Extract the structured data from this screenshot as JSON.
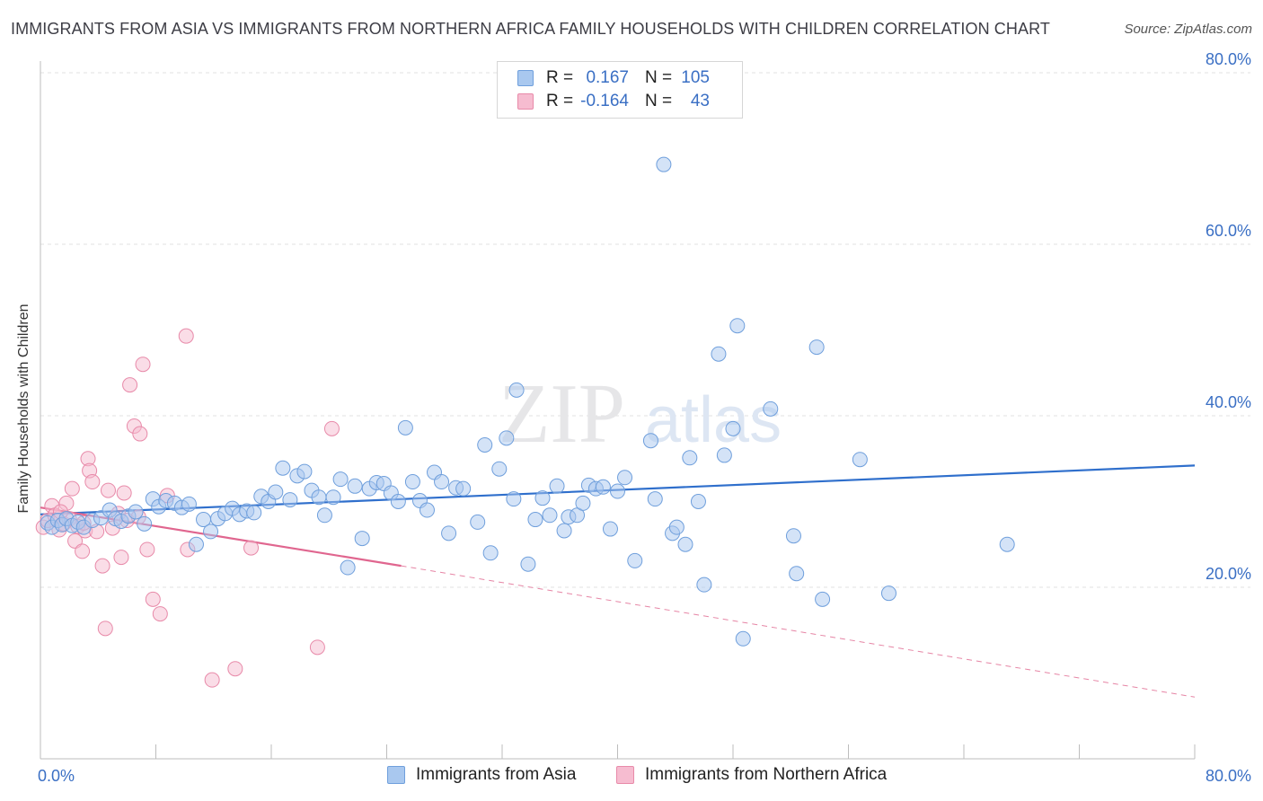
{
  "header": {
    "title": "IMMIGRANTS FROM ASIA VS IMMIGRANTS FROM NORTHERN AFRICA FAMILY HOUSEHOLDS WITH CHILDREN CORRELATION CHART",
    "source": "Source: ZipAtlas.com"
  },
  "watermark": {
    "zip": "ZIP",
    "atlas": "atlas"
  },
  "legend": {
    "rows": [
      {
        "r_label": "R =",
        "r_value": "0.167",
        "n_label": "N =",
        "n_value": "105"
      },
      {
        "r_label": "R =",
        "r_value": "-0.164",
        "n_label": "N =",
        "n_value": "43"
      }
    ]
  },
  "colors": {
    "asia_fill": "#a9c8ef",
    "asia_stroke": "#6f9fdc",
    "asia_line": "#2f6fcc",
    "africa_fill": "#f6bcd0",
    "africa_stroke": "#e88aa9",
    "africa_line": "#e0668f",
    "tick_text": "#3a6fc4",
    "grid": "#e2e2e2"
  },
  "chart_data": {
    "type": "scatter",
    "title": "IMMIGRANTS FROM ASIA VS IMMIGRANTS FROM NORTHERN AFRICA FAMILY HOUSEHOLDS WITH CHILDREN CORRELATION CHART",
    "xlabel": "",
    "ylabel": "Family Households with Children",
    "xlim": [
      0,
      80
    ],
    "ylim": [
      0,
      85
    ],
    "x_tick_labels": [
      "0.0%",
      "80.0%"
    ],
    "y_ticks": [
      20,
      40,
      60,
      80
    ],
    "y_tick_labels": [
      "20.0%",
      "40.0%",
      "60.0%",
      "80.0%"
    ],
    "grid": true,
    "legend_position": "top-center",
    "series": [
      {
        "name": "Immigrants from Asia",
        "trend": {
          "x": [
            0,
            80
          ],
          "y": [
            28.5,
            34.2
          ],
          "style": "solid"
        },
        "points": [
          [
            0.5,
            27.5
          ],
          [
            0.8,
            27.0
          ],
          [
            1.2,
            27.8
          ],
          [
            1.5,
            27.3
          ],
          [
            1.8,
            28.0
          ],
          [
            2.2,
            27.2
          ],
          [
            2.6,
            27.6
          ],
          [
            3.0,
            27.0
          ],
          [
            3.6,
            27.8
          ],
          [
            4.2,
            28.1
          ],
          [
            4.8,
            29.0
          ],
          [
            5.2,
            28.0
          ],
          [
            5.6,
            27.7
          ],
          [
            6.1,
            28.3
          ],
          [
            6.6,
            28.8
          ],
          [
            7.2,
            27.4
          ],
          [
            7.8,
            30.3
          ],
          [
            8.2,
            29.4
          ],
          [
            8.7,
            30.1
          ],
          [
            9.3,
            29.8
          ],
          [
            9.8,
            29.3
          ],
          [
            10.3,
            29.7
          ],
          [
            10.8,
            25.0
          ],
          [
            11.3,
            27.9
          ],
          [
            11.8,
            26.5
          ],
          [
            12.3,
            28.0
          ],
          [
            12.8,
            28.6
          ],
          [
            13.3,
            29.2
          ],
          [
            13.8,
            28.5
          ],
          [
            14.3,
            28.9
          ],
          [
            14.8,
            28.7
          ],
          [
            15.3,
            30.6
          ],
          [
            15.8,
            30.0
          ],
          [
            16.3,
            31.1
          ],
          [
            16.8,
            33.9
          ],
          [
            17.3,
            30.2
          ],
          [
            17.8,
            33.0
          ],
          [
            18.3,
            33.5
          ],
          [
            18.8,
            31.3
          ],
          [
            19.3,
            30.5
          ],
          [
            19.7,
            28.4
          ],
          [
            20.3,
            30.5
          ],
          [
            20.8,
            32.6
          ],
          [
            21.3,
            22.3
          ],
          [
            21.8,
            31.8
          ],
          [
            22.3,
            25.7
          ],
          [
            22.8,
            31.5
          ],
          [
            23.3,
            32.2
          ],
          [
            23.8,
            32.1
          ],
          [
            24.3,
            31.0
          ],
          [
            24.8,
            30.0
          ],
          [
            25.3,
            38.6
          ],
          [
            25.8,
            32.3
          ],
          [
            26.3,
            30.1
          ],
          [
            26.8,
            29.0
          ],
          [
            27.3,
            33.4
          ],
          [
            27.8,
            32.3
          ],
          [
            28.3,
            26.3
          ],
          [
            28.8,
            31.6
          ],
          [
            29.3,
            31.5
          ],
          [
            30.3,
            27.6
          ],
          [
            30.8,
            36.6
          ],
          [
            31.2,
            24.0
          ],
          [
            31.8,
            33.8
          ],
          [
            32.3,
            37.4
          ],
          [
            32.8,
            30.3
          ],
          [
            33.8,
            22.7
          ],
          [
            34.3,
            27.9
          ],
          [
            34.8,
            30.4
          ],
          [
            35.3,
            28.4
          ],
          [
            35.8,
            31.8
          ],
          [
            36.3,
            26.6
          ],
          [
            36.6,
            28.2
          ],
          [
            37.2,
            28.4
          ],
          [
            37.6,
            29.8
          ],
          [
            38.0,
            31.9
          ],
          [
            38.5,
            31.5
          ],
          [
            39.0,
            31.7
          ],
          [
            39.5,
            26.8
          ],
          [
            40.0,
            31.2
          ],
          [
            40.5,
            32.8
          ],
          [
            41.2,
            23.1
          ],
          [
            42.3,
            37.1
          ],
          [
            42.6,
            30.3
          ],
          [
            43.2,
            69.3
          ],
          [
            43.8,
            26.3
          ],
          [
            44.1,
            27.0
          ],
          [
            44.7,
            25.0
          ],
          [
            45.0,
            35.1
          ],
          [
            45.6,
            30.0
          ],
          [
            46.0,
            20.3
          ],
          [
            47.0,
            47.2
          ],
          [
            47.4,
            35.4
          ],
          [
            48.0,
            38.5
          ],
          [
            48.3,
            50.5
          ],
          [
            48.7,
            14.0
          ],
          [
            50.6,
            40.8
          ],
          [
            52.2,
            26.0
          ],
          [
            52.4,
            21.6
          ],
          [
            53.8,
            48.0
          ],
          [
            54.2,
            18.6
          ],
          [
            56.8,
            34.9
          ],
          [
            58.8,
            19.3
          ],
          [
            67.0,
            25.0
          ],
          [
            33.0,
            43.0
          ]
        ]
      },
      {
        "name": "Immigrants from Northern Africa",
        "trend": {
          "x": [
            0,
            25
          ],
          "y": [
            29.3,
            22.5
          ],
          "style": "solid",
          "dashed_extension": {
            "x": [
              25,
              80
            ],
            "y": [
              22.5,
              7.2
            ]
          }
        },
        "points": [
          [
            0.2,
            27.0
          ],
          [
            0.5,
            27.8
          ],
          [
            0.8,
            29.5
          ],
          [
            1.0,
            28.4
          ],
          [
            1.3,
            26.7
          ],
          [
            1.6,
            27.4
          ],
          [
            1.8,
            29.8
          ],
          [
            2.0,
            28.0
          ],
          [
            2.2,
            31.5
          ],
          [
            2.4,
            25.4
          ],
          [
            2.6,
            27.1
          ],
          [
            2.9,
            24.2
          ],
          [
            3.1,
            26.6
          ],
          [
            3.3,
            35.0
          ],
          [
            3.4,
            33.6
          ],
          [
            3.6,
            32.3
          ],
          [
            3.9,
            26.5
          ],
          [
            4.3,
            22.5
          ],
          [
            4.5,
            15.2
          ],
          [
            4.7,
            31.3
          ],
          [
            5.0,
            26.9
          ],
          [
            5.4,
            28.6
          ],
          [
            5.6,
            23.5
          ],
          [
            5.8,
            31.0
          ],
          [
            6.0,
            27.8
          ],
          [
            6.2,
            43.6
          ],
          [
            6.5,
            38.8
          ],
          [
            6.8,
            28.2
          ],
          [
            7.1,
            46.0
          ],
          [
            6.9,
            37.9
          ],
          [
            7.4,
            24.4
          ],
          [
            7.8,
            18.6
          ],
          [
            8.3,
            16.9
          ],
          [
            8.8,
            30.7
          ],
          [
            10.1,
            49.3
          ],
          [
            10.2,
            24.4
          ],
          [
            11.9,
            9.2
          ],
          [
            13.5,
            10.5
          ],
          [
            14.6,
            24.6
          ],
          [
            19.2,
            13.0
          ],
          [
            20.2,
            38.5
          ],
          [
            1.4,
            28.8
          ],
          [
            3.0,
            27.5
          ]
        ]
      }
    ]
  },
  "bottom_legend": {
    "asia": "Immigrants from Asia",
    "africa": "Immigrants from Northern Africa"
  }
}
